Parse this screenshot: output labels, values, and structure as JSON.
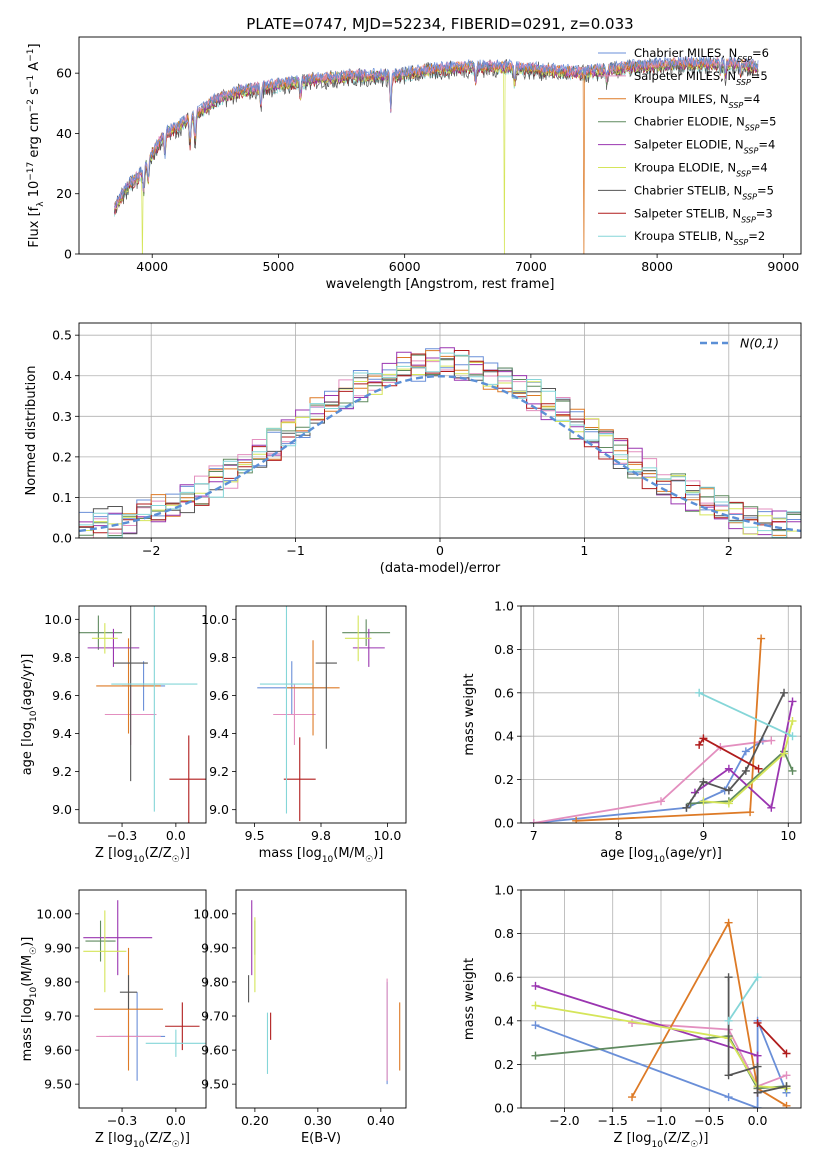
{
  "figure_title": "PLATE=0747, MJD=52234, FIBERID=0291, z=0.033",
  "colors": {
    "Chabrier MILES": "#6a8fd8",
    "Salpeter MILES": "#e38fbf",
    "Kroupa MILES": "#dd7a26",
    "Chabrier ELODIE": "#5f8a5f",
    "Salpeter ELODIE": "#9a35b0",
    "Kroupa ELODIE": "#d5e55a",
    "Chabrier STELIB": "#555555",
    "Salpeter STELIB": "#b01c1c",
    "Kroupa STELIB": "#85d6d8",
    "normal_curve": "#5b8fd6"
  },
  "chart_data": [
    {
      "id": "spectrum",
      "type": "line",
      "xlabel": "wavelength [Angstrom, rest frame]",
      "ylabel": "Flux [f_λ 10^-17 erg cm^-2 s^-1 A^-1]",
      "xlim": [
        3420,
        9140
      ],
      "ylim": [
        0,
        72
      ],
      "xticks": [
        4000,
        5000,
        6000,
        7000,
        8000,
        9000
      ],
      "yticks": [
        0,
        20,
        40,
        60
      ],
      "legend_position": "top-right",
      "legend": [
        {
          "model": "Chabrier MILES",
          "label": "Chabrier MILES, N",
          "sub": "SSP",
          "rest": "=6"
        },
        {
          "model": "Salpeter MILES",
          "label": "Salpeter MILES, N",
          "sub": "SSP",
          "rest": "=5"
        },
        {
          "model": "Kroupa MILES",
          "label": "Kroupa MILES, N",
          "sub": "SSP",
          "rest": "=4"
        },
        {
          "model": "Chabrier ELODIE",
          "label": "Chabrier ELODIE, N",
          "sub": "SSP",
          "rest": "=5"
        },
        {
          "model": "Salpeter ELODIE",
          "label": "Salpeter ELODIE, N",
          "sub": "SSP",
          "rest": "=4"
        },
        {
          "model": "Kroupa ELODIE",
          "label": "Kroupa ELODIE, N",
          "sub": "SSP",
          "rest": "=4"
        },
        {
          "model": "Chabrier STELIB",
          "label": "Chabrier STELIB, N",
          "sub": "SSP",
          "rest": "=5"
        },
        {
          "model": "Salpeter STELIB",
          "label": "Salpeter STELIB, N",
          "sub": "SSP",
          "rest": "=3"
        },
        {
          "model": "Kroupa STELIB",
          "label": "Kroupa STELIB, N",
          "sub": "SSP",
          "rest": "=2"
        }
      ],
      "continuum": [
        [
          3700,
          15
        ],
        [
          3800,
          22
        ],
        [
          3900,
          26
        ],
        [
          4000,
          33
        ],
        [
          4100,
          40
        ],
        [
          4200,
          42
        ],
        [
          4300,
          45
        ],
        [
          4400,
          48
        ],
        [
          4500,
          51
        ],
        [
          4700,
          54
        ],
        [
          5000,
          56
        ],
        [
          5300,
          58
        ],
        [
          5600,
          59
        ],
        [
          5900,
          59
        ],
        [
          6200,
          61
        ],
        [
          6500,
          62
        ],
        [
          6800,
          62
        ],
        [
          7100,
          61
        ],
        [
          7400,
          60
        ],
        [
          7800,
          62
        ],
        [
          8200,
          63
        ],
        [
          8600,
          63
        ],
        [
          8800,
          62
        ]
      ],
      "absorptions": [
        [
          3933,
          -8
        ],
        [
          3968,
          -7
        ],
        [
          4101,
          -8
        ],
        [
          4300,
          -9
        ],
        [
          4340,
          -9
        ],
        [
          4861,
          -6
        ],
        [
          5175,
          -5
        ],
        [
          5890,
          -11
        ],
        [
          6563,
          -5
        ],
        [
          6870,
          -5
        ],
        [
          7600,
          -4
        ],
        [
          8500,
          -3
        ],
        [
          8540,
          -4
        ],
        [
          8660,
          -3
        ]
      ],
      "drops": [
        {
          "model": "Kroupa ELODIE",
          "x": 3920
        },
        {
          "model": "Kroupa ELODIE",
          "x": 6790
        },
        {
          "model": "Kroupa MILES",
          "x": 7420
        }
      ]
    },
    {
      "id": "residuals",
      "type": "histogram",
      "xlabel": "(data-model)/error",
      "ylabel": "Normed distribution",
      "xlim": [
        -2.5,
        2.5
      ],
      "ylim": [
        0,
        0.53
      ],
      "xticks": [
        -2,
        -1,
        0,
        1,
        2
      ],
      "yticks": [
        0.0,
        0.1,
        0.2,
        0.3,
        0.4,
        0.5
      ],
      "grid": true,
      "bin_width": 0.1,
      "curve_label": "N(0,1)",
      "legend_position": "top-right"
    },
    {
      "id": "age-vs-Z",
      "type": "errorbar",
      "xlabel": "Z [log10(Z/Z☉)]",
      "ylabel": "age [log10(age/yr)]",
      "xlim": [
        -0.45,
        0.14
      ],
      "ylim": [
        8.93,
        10.07
      ],
      "xticks": [
        -0.25,
        0.0
      ],
      "yticks": [
        9.0,
        9.2,
        9.4,
        9.6,
        9.8,
        10.0
      ],
      "points": [
        {
          "model": "Chabrier MILES",
          "x": -0.15,
          "y": 9.65,
          "xe": 0.1,
          "ye": 0.13
        },
        {
          "model": "Salpeter MILES",
          "x": -0.21,
          "y": 9.5,
          "xe": 0.12,
          "ye": 0.16
        },
        {
          "model": "Kroupa MILES",
          "x": -0.22,
          "y": 9.65,
          "xe": 0.15,
          "ye": 0.25
        },
        {
          "model": "Chabrier ELODIE",
          "x": -0.36,
          "y": 9.93,
          "xe": 0.11,
          "ye": 0.09
        },
        {
          "model": "Salpeter ELODIE",
          "x": -0.29,
          "y": 9.85,
          "xe": 0.12,
          "ye": 0.1
        },
        {
          "model": "Kroupa ELODIE",
          "x": -0.33,
          "y": 9.9,
          "xe": 0.06,
          "ye": 0.08
        },
        {
          "model": "Chabrier STELIB",
          "x": -0.21,
          "y": 9.77,
          "xe": 0.08,
          "ye": 0.62
        },
        {
          "model": "Salpeter STELIB",
          "x": 0.06,
          "y": 9.16,
          "xe": 0.09,
          "ye": 0.23
        },
        {
          "model": "Kroupa STELIB",
          "x": -0.1,
          "y": 9.66,
          "xe": 0.2,
          "ye": 0.67
        }
      ]
    },
    {
      "id": "age-vs-mass",
      "type": "errorbar",
      "xlabel": "mass [log10(M/M☉)]",
      "ylabel": "",
      "xlim": [
        9.43,
        10.07
      ],
      "ylim": [
        8.93,
        10.07
      ],
      "xticks": [
        9.5,
        9.75,
        10.0
      ],
      "yticks": [
        9.0,
        9.2,
        9.4,
        9.6,
        9.8,
        10.0
      ],
      "points": [
        {
          "model": "Chabrier MILES",
          "x": 9.64,
          "y": 9.64,
          "xe": 0.13,
          "ye": 0.14
        },
        {
          "model": "Salpeter MILES",
          "x": 9.65,
          "y": 9.5,
          "xe": 0.08,
          "ye": 0.16
        },
        {
          "model": "Kroupa MILES",
          "x": 9.72,
          "y": 9.64,
          "xe": 0.1,
          "ye": 0.25
        },
        {
          "model": "Chabrier ELODIE",
          "x": 9.92,
          "y": 9.93,
          "xe": 0.09,
          "ye": 0.07
        },
        {
          "model": "Salpeter ELODIE",
          "x": 9.93,
          "y": 9.85,
          "xe": 0.06,
          "ye": 0.1
        },
        {
          "model": "Kroupa ELODIE",
          "x": 9.89,
          "y": 9.9,
          "xe": 0.05,
          "ye": 0.12
        },
        {
          "model": "Chabrier STELIB",
          "x": 9.77,
          "y": 9.77,
          "xe": 0.04,
          "ye": 0.45
        },
        {
          "model": "Salpeter STELIB",
          "x": 9.67,
          "y": 9.16,
          "xe": 0.06,
          "ye": 0.22
        },
        {
          "model": "Kroupa STELIB",
          "x": 9.62,
          "y": 9.66,
          "xe": 0.1,
          "ye": 0.68
        }
      ]
    },
    {
      "id": "weight-vs-age",
      "type": "line",
      "xlabel": "age [log10(age/yr)]",
      "ylabel": "mass weight",
      "xlim": [
        6.85,
        10.15
      ],
      "ylim": [
        0,
        1
      ],
      "xticks": [
        7,
        8,
        9,
        10
      ],
      "yticks": [
        0.0,
        0.2,
        0.4,
        0.6,
        0.8,
        1.0
      ],
      "grid": true,
      "series": [
        {
          "model": "Chabrier MILES",
          "points": [
            [
              7.0,
              0.0
            ],
            [
              8.8,
              0.07
            ],
            [
              9.25,
              0.15
            ],
            [
              9.5,
              0.33
            ],
            [
              9.7,
              0.38
            ]
          ]
        },
        {
          "model": "Salpeter MILES",
          "points": [
            [
              7.0,
              0.0
            ],
            [
              8.5,
              0.1
            ],
            [
              9.2,
              0.35
            ],
            [
              9.8,
              0.38
            ]
          ]
        },
        {
          "model": "Kroupa MILES",
          "points": [
            [
              7.5,
              0.01
            ],
            [
              9.55,
              0.05
            ],
            [
              9.68,
              0.85
            ]
          ]
        },
        {
          "model": "Chabrier ELODIE",
          "points": [
            [
              8.85,
              0.09
            ],
            [
              9.3,
              0.1
            ],
            [
              9.95,
              0.33
            ],
            [
              10.05,
              0.24
            ]
          ]
        },
        {
          "model": "Salpeter ELODIE",
          "points": [
            [
              8.9,
              0.14
            ],
            [
              9.3,
              0.25
            ],
            [
              9.8,
              0.07
            ],
            [
              10.05,
              0.56
            ]
          ]
        },
        {
          "model": "Kroupa ELODIE",
          "points": [
            [
              9.0,
              0.1
            ],
            [
              9.3,
              0.09
            ],
            [
              9.95,
              0.32
            ],
            [
              10.05,
              0.47
            ]
          ]
        },
        {
          "model": "Chabrier STELIB",
          "points": [
            [
              8.8,
              0.07
            ],
            [
              9.0,
              0.19
            ],
            [
              9.3,
              0.15
            ],
            [
              9.5,
              0.24
            ],
            [
              9.95,
              0.6
            ]
          ]
        },
        {
          "model": "Salpeter STELIB",
          "points": [
            [
              8.95,
              0.36
            ],
            [
              9.0,
              0.39
            ],
            [
              9.65,
              0.25
            ]
          ]
        },
        {
          "model": "Kroupa STELIB",
          "points": [
            [
              8.95,
              0.6
            ],
            [
              10.05,
              0.4
            ]
          ]
        }
      ]
    },
    {
      "id": "mass-vs-Z",
      "type": "errorbar",
      "xlabel": "Z [log10(Z/Z☉)]",
      "ylabel": "mass [log10(M/M☉)]",
      "xlim": [
        -0.45,
        0.14
      ],
      "ylim": [
        9.43,
        10.07
      ],
      "xticks": [
        -0.25,
        0.0
      ],
      "yticks": [
        9.5,
        9.6,
        9.7,
        9.8,
        9.9,
        10.0
      ],
      "points": [
        {
          "model": "Chabrier MILES",
          "x": -0.18,
          "y": 9.64,
          "xe": 0.13,
          "ye": 0.13
        },
        {
          "model": "Salpeter MILES",
          "x": -0.22,
          "y": 9.64,
          "xe": 0.15,
          "ye": 0.07
        },
        {
          "model": "Kroupa MILES",
          "x": -0.22,
          "y": 9.72,
          "xe": 0.16,
          "ye": 0.18
        },
        {
          "model": "Chabrier ELODIE",
          "x": -0.35,
          "y": 9.92,
          "xe": 0.07,
          "ye": 0.06
        },
        {
          "model": "Salpeter ELODIE",
          "x": -0.27,
          "y": 9.93,
          "xe": 0.16,
          "ye": 0.11
        },
        {
          "model": "Kroupa ELODIE",
          "x": -0.33,
          "y": 9.89,
          "xe": 0.1,
          "ye": 0.12
        },
        {
          "model": "Chabrier STELIB",
          "x": -0.22,
          "y": 9.77,
          "xe": 0.04,
          "ye": 0.05
        },
        {
          "model": "Salpeter STELIB",
          "x": 0.03,
          "y": 9.67,
          "xe": 0.08,
          "ye": 0.07
        },
        {
          "model": "Kroupa STELIB",
          "x": 0.0,
          "y": 9.62,
          "xe": 0.14,
          "ye": 0.04
        }
      ]
    },
    {
      "id": "mass-vs-EBV",
      "type": "errorbar",
      "xlabel": "E(B-V)",
      "ylabel": "",
      "xlim": [
        0.17,
        0.44
      ],
      "ylim": [
        9.43,
        10.07
      ],
      "xticks": [
        0.2,
        0.3,
        0.4
      ],
      "yticks": [
        9.5,
        9.6,
        9.7,
        9.8,
        9.9,
        10.0
      ],
      "points": [
        {
          "model": "Chabrier MILES",
          "x": 0.41,
          "y": 9.65,
          "xe": 0.0,
          "ye": 0.15
        },
        {
          "model": "Salpeter MILES",
          "x": 0.41,
          "y": 9.66,
          "xe": 0.0,
          "ye": 0.15
        },
        {
          "model": "Kroupa MILES",
          "x": 0.43,
          "y": 9.64,
          "xe": 0.0,
          "ye": 0.1
        },
        {
          "model": "Chabrier ELODIE",
          "x": 0.2,
          "y": 9.93,
          "xe": 0.0,
          "ye": 0.05
        },
        {
          "model": "Salpeter ELODIE",
          "x": 0.195,
          "y": 9.93,
          "xe": 0.0,
          "ye": 0.11
        },
        {
          "model": "Kroupa ELODIE",
          "x": 0.2,
          "y": 9.88,
          "xe": 0.0,
          "ye": 0.11
        },
        {
          "model": "Chabrier STELIB",
          "x": 0.19,
          "y": 9.78,
          "xe": 0.0,
          "ye": 0.04
        },
        {
          "model": "Salpeter STELIB",
          "x": 0.225,
          "y": 9.67,
          "xe": 0.0,
          "ye": 0.04
        },
        {
          "model": "Kroupa STELIB",
          "x": 0.22,
          "y": 9.62,
          "xe": 0.0,
          "ye": 0.09
        }
      ]
    },
    {
      "id": "weight-vs-Z",
      "type": "line",
      "xlabel": "Z [log10(Z/Z☉)]",
      "ylabel": "mass weight",
      "xlim": [
        -2.45,
        0.45
      ],
      "ylim": [
        0,
        1
      ],
      "xticks": [
        -2.0,
        -1.5,
        -1.0,
        -0.5,
        0.0
      ],
      "yticks": [
        0.0,
        0.2,
        0.4,
        0.6,
        0.8,
        1.0
      ],
      "grid": true,
      "series": [
        {
          "model": "Chabrier MILES",
          "points": [
            [
              -2.3,
              0.38
            ],
            [
              -0.3,
              0.05
            ],
            [
              0.0,
              0.0
            ],
            [
              0.0,
              0.4
            ],
            [
              0.3,
              0.07
            ]
          ]
        },
        {
          "model": "Salpeter MILES",
          "points": [
            [
              -1.3,
              0.39
            ],
            [
              -0.3,
              0.36
            ],
            [
              0.0,
              0.1
            ],
            [
              0.3,
              0.15
            ]
          ]
        },
        {
          "model": "Kroupa MILES",
          "points": [
            [
              -1.3,
              0.05
            ],
            [
              -0.3,
              0.85
            ],
            [
              0.0,
              0.09
            ],
            [
              0.3,
              0.01
            ]
          ]
        },
        {
          "model": "Chabrier ELODIE",
          "points": [
            [
              -2.3,
              0.24
            ],
            [
              -0.3,
              0.33
            ],
            [
              0.0,
              0.09
            ],
            [
              0.3,
              0.1
            ]
          ]
        },
        {
          "model": "Salpeter ELODIE",
          "points": [
            [
              -2.3,
              0.56
            ],
            [
              0.0,
              0.24
            ],
            [
              0.0,
              0.07
            ]
          ]
        },
        {
          "model": "Kroupa ELODIE",
          "points": [
            [
              -2.3,
              0.47
            ],
            [
              -0.3,
              0.32
            ],
            [
              0.0,
              0.1
            ],
            [
              0.3,
              0.09
            ]
          ]
        },
        {
          "model": "Chabrier STELIB",
          "points": [
            [
              -0.3,
              0.6
            ],
            [
              -0.3,
              0.15
            ],
            [
              0.0,
              0.19
            ],
            [
              0.0,
              0.07
            ],
            [
              0.3,
              0.1
            ]
          ]
        },
        {
          "model": "Salpeter STELIB",
          "points": [
            [
              0.0,
              0.39
            ],
            [
              0.3,
              0.25
            ]
          ]
        },
        {
          "model": "Kroupa STELIB",
          "points": [
            [
              -0.3,
              0.4
            ],
            [
              0.0,
              0.6
            ]
          ]
        }
      ]
    }
  ]
}
